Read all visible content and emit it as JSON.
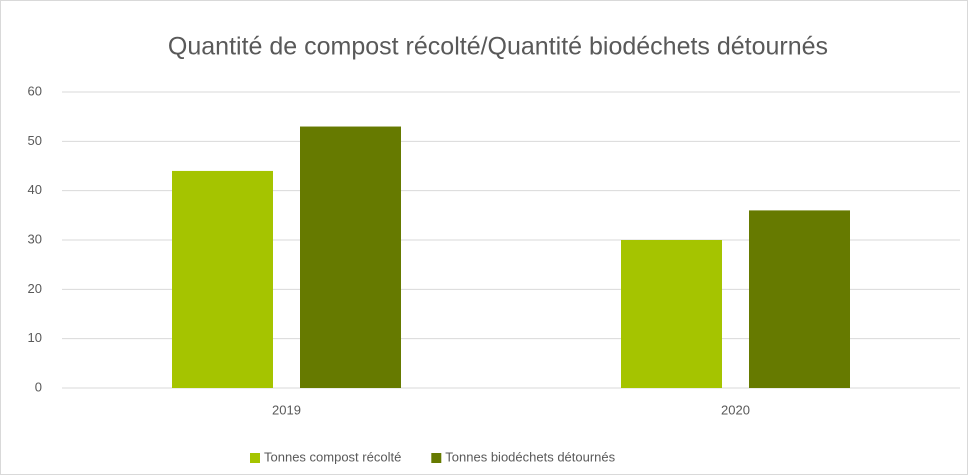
{
  "chart_data": {
    "type": "bar",
    "title": "Quantité de compost récolté/Quantité biodéchets détournés",
    "categories": [
      "2019",
      "2020"
    ],
    "series": [
      {
        "name": "Tonnes compost récolté",
        "color": "#a5c400",
        "values": [
          44,
          30
        ]
      },
      {
        "name": "Tonnes biodéchets détournés",
        "color": "#667a00",
        "values": [
          53,
          36
        ]
      }
    ],
    "ylim": [
      0,
      60
    ],
    "yticks": [
      0,
      10,
      20,
      30,
      40,
      50,
      60
    ],
    "grid": true,
    "legend": "bottom"
  }
}
